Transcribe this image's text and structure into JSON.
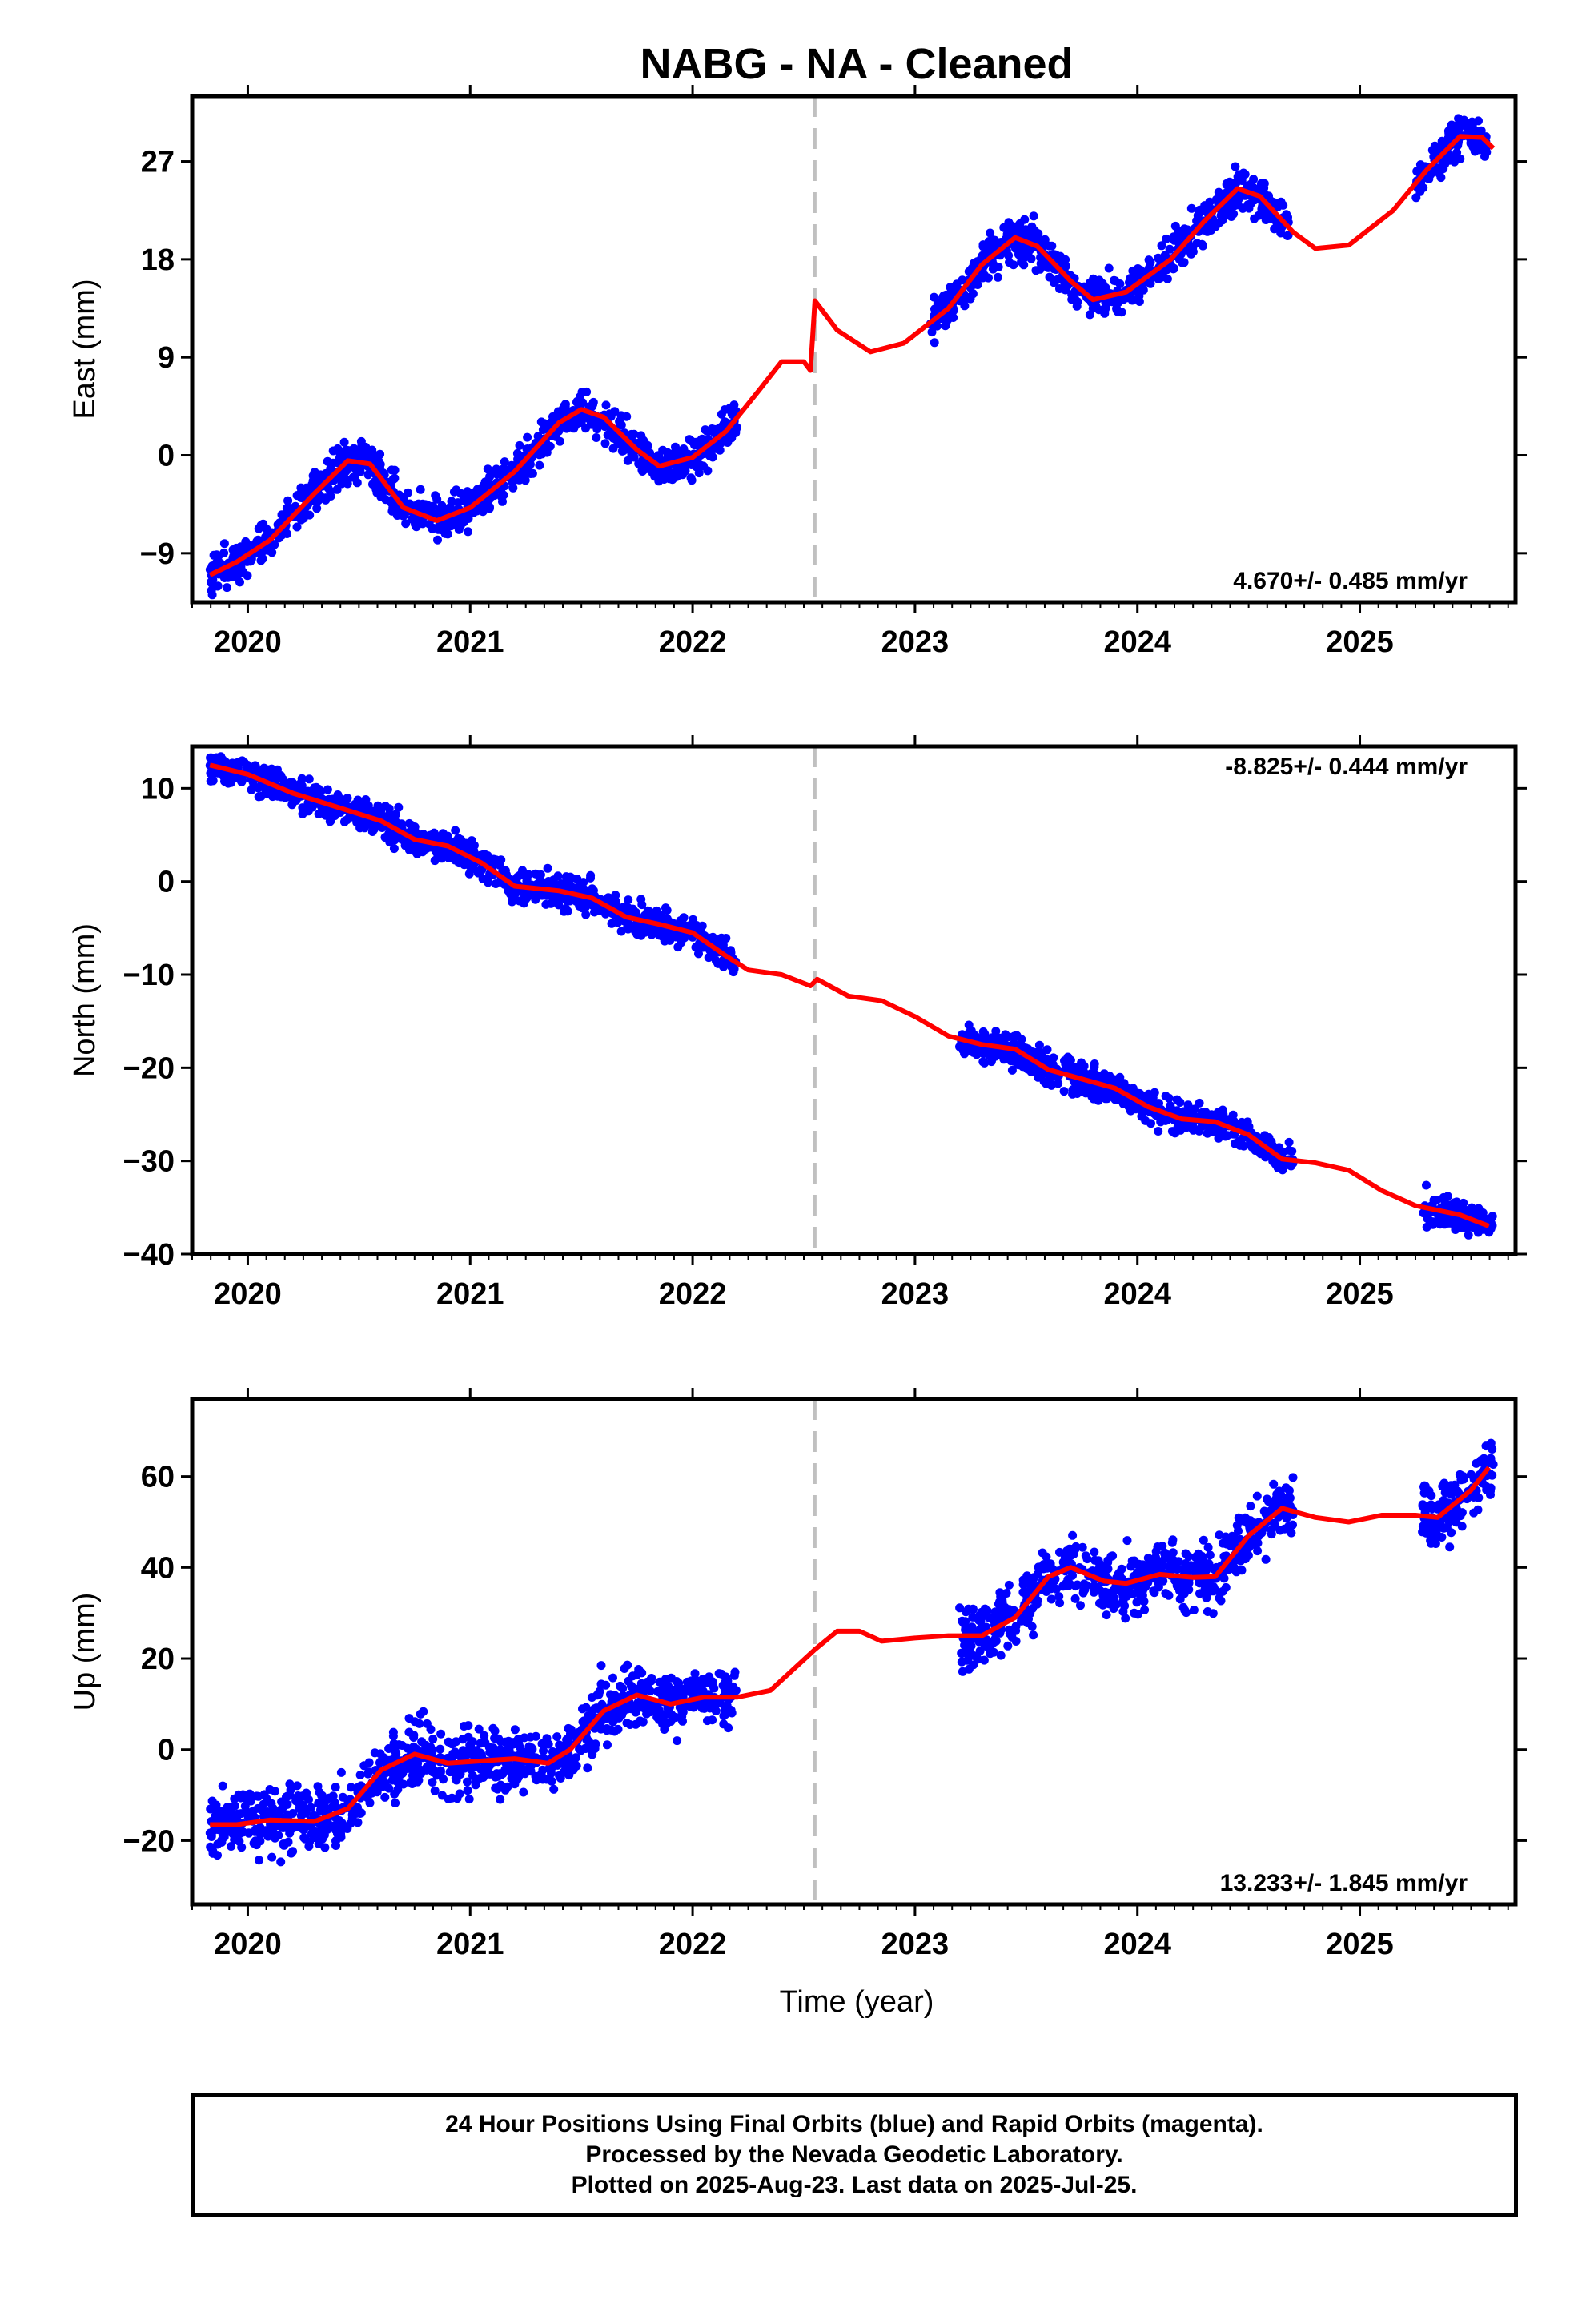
{
  "title": "NABG  - NA - Cleaned",
  "xlabel": "Time (year)",
  "footer": {
    "line1": "24 Hour Positions Using Final Orbits (blue) and Rapid Orbits (magenta).",
    "line2": "Processed by the Nevada Geodetic Laboratory.",
    "line3": "Plotted on 2025-Aug-23. Last data on 2025-Jul-25."
  },
  "colors": {
    "data": "#0000ff",
    "model": "#ff0000",
    "marker": "#c0c0c0",
    "frame": "#000000"
  },
  "chart_data": [
    {
      "type": "scatter",
      "ylabel": "East (mm)",
      "rate": "4.670+/- 0.485 mm/yr",
      "xlim": [
        2019.75,
        2025.7
      ],
      "ylim": [
        -13.5,
        33
      ],
      "yticks": [
        -9,
        0,
        9,
        18,
        27
      ],
      "xticks": [
        2020,
        2021,
        2022,
        2023,
        2024,
        2025
      ],
      "equipment_change": 2022.55,
      "data_segments": [
        [
          2019.83,
          2022.2
        ],
        [
          2023.07,
          2024.68
        ],
        [
          2025.25,
          2025.57
        ]
      ],
      "noise": 1.3,
      "model": [
        [
          2019.83,
          -11
        ],
        [
          2019.95,
          -9.8
        ],
        [
          2020.1,
          -7.8
        ],
        [
          2020.3,
          -3.5
        ],
        [
          2020.45,
          -0.5
        ],
        [
          2020.55,
          -0.8
        ],
        [
          2020.7,
          -4.8
        ],
        [
          2020.85,
          -6
        ],
        [
          2021.0,
          -4.8
        ],
        [
          2021.2,
          -1.5
        ],
        [
          2021.4,
          3
        ],
        [
          2021.5,
          4.2
        ],
        [
          2021.6,
          3.5
        ],
        [
          2021.75,
          0.5
        ],
        [
          2021.85,
          -1
        ],
        [
          2022.0,
          -0.2
        ],
        [
          2022.15,
          2.2
        ],
        [
          2022.3,
          6
        ],
        [
          2022.4,
          8.6
        ],
        [
          2022.5,
          8.6
        ],
        [
          2022.53,
          7.8
        ],
        [
          2022.55,
          14.2
        ],
        [
          2022.65,
          11.5
        ],
        [
          2022.8,
          9.5
        ],
        [
          2022.95,
          10.3
        ],
        [
          2023.15,
          13.5
        ],
        [
          2023.3,
          17.5
        ],
        [
          2023.45,
          20
        ],
        [
          2023.55,
          19.2
        ],
        [
          2023.7,
          16
        ],
        [
          2023.8,
          14.3
        ],
        [
          2023.95,
          15
        ],
        [
          2024.15,
          18
        ],
        [
          2024.3,
          21.5
        ],
        [
          2024.45,
          24.5
        ],
        [
          2024.55,
          23.8
        ],
        [
          2024.7,
          20.5
        ],
        [
          2024.8,
          19
        ],
        [
          2024.95,
          19.3
        ],
        [
          2025.15,
          22.5
        ],
        [
          2025.3,
          26.2
        ],
        [
          2025.45,
          29.3
        ],
        [
          2025.55,
          29.2
        ],
        [
          2025.6,
          28.2
        ]
      ]
    },
    {
      "type": "scatter",
      "ylabel": "North (mm)",
      "rate": "-8.825+/- 0.444 mm/yr",
      "xlim": [
        2019.75,
        2025.7
      ],
      "ylim": [
        -40,
        14.5
      ],
      "yticks": [
        -40,
        -30,
        -20,
        -10,
        0,
        10
      ],
      "xticks": [
        2020,
        2021,
        2022,
        2023,
        2024,
        2025
      ],
      "equipment_change": 2022.55,
      "data_segments": [
        [
          2019.83,
          2022.2
        ],
        [
          2023.2,
          2024.7
        ],
        [
          2025.28,
          2025.6
        ]
      ],
      "noise": 1.2,
      "model": [
        [
          2019.83,
          12.5
        ],
        [
          2020.0,
          11.5
        ],
        [
          2020.2,
          9.5
        ],
        [
          2020.4,
          8
        ],
        [
          2020.6,
          6.5
        ],
        [
          2020.75,
          4.5
        ],
        [
          2020.9,
          3.8
        ],
        [
          2021.05,
          2
        ],
        [
          2021.2,
          -0.5
        ],
        [
          2021.4,
          -1
        ],
        [
          2021.55,
          -1.8
        ],
        [
          2021.7,
          -3.8
        ],
        [
          2021.85,
          -4.6
        ],
        [
          2022.0,
          -5.5
        ],
        [
          2022.15,
          -8
        ],
        [
          2022.25,
          -9.5
        ],
        [
          2022.4,
          -10
        ],
        [
          2022.53,
          -11.2
        ],
        [
          2022.56,
          -10.5
        ],
        [
          2022.7,
          -12.3
        ],
        [
          2022.85,
          -12.8
        ],
        [
          2023.0,
          -14.5
        ],
        [
          2023.15,
          -16.6
        ],
        [
          2023.3,
          -17.5
        ],
        [
          2023.45,
          -18
        ],
        [
          2023.6,
          -20.2
        ],
        [
          2023.75,
          -21.2
        ],
        [
          2023.9,
          -22.2
        ],
        [
          2024.05,
          -24.2
        ],
        [
          2024.2,
          -25.5
        ],
        [
          2024.35,
          -25.8
        ],
        [
          2024.5,
          -27.2
        ],
        [
          2024.65,
          -29.8
        ],
        [
          2024.8,
          -30.2
        ],
        [
          2024.95,
          -31
        ],
        [
          2025.1,
          -33.2
        ],
        [
          2025.25,
          -34.8
        ],
        [
          2025.45,
          -35.8
        ],
        [
          2025.58,
          -37
        ]
      ]
    },
    {
      "type": "scatter",
      "ylabel": "Up (mm)",
      "rate": "13.233+/- 1.845 mm/yr",
      "xlim": [
        2019.75,
        2025.7
      ],
      "ylim": [
        -34,
        77
      ],
      "yticks": [
        -20,
        0,
        20,
        40,
        60
      ],
      "xticks": [
        2020,
        2021,
        2022,
        2023,
        2024,
        2025
      ],
      "equipment_change": 2022.55,
      "data_segments": [
        [
          2019.83,
          2022.2
        ],
        [
          2023.2,
          2024.7
        ],
        [
          2025.28,
          2025.6
        ]
      ],
      "noise": 5,
      "model": [
        [
          2019.83,
          -16.5
        ],
        [
          2019.95,
          -16.5
        ],
        [
          2020.1,
          -15.5
        ],
        [
          2020.3,
          -15.8
        ],
        [
          2020.45,
          -13
        ],
        [
          2020.6,
          -4.5
        ],
        [
          2020.75,
          -1
        ],
        [
          2020.9,
          -3
        ],
        [
          2021.05,
          -2.5
        ],
        [
          2021.2,
          -2
        ],
        [
          2021.35,
          -3
        ],
        [
          2021.45,
          0
        ],
        [
          2021.6,
          8.5
        ],
        [
          2021.75,
          12
        ],
        [
          2021.9,
          10
        ],
        [
          2022.05,
          11.5
        ],
        [
          2022.2,
          11.5
        ],
        [
          2022.35,
          13
        ],
        [
          2022.55,
          22
        ],
        [
          2022.65,
          26
        ],
        [
          2022.75,
          26
        ],
        [
          2022.85,
          23.8
        ],
        [
          2023.0,
          24.5
        ],
        [
          2023.15,
          25
        ],
        [
          2023.3,
          25
        ],
        [
          2023.45,
          29
        ],
        [
          2023.6,
          38
        ],
        [
          2023.7,
          40
        ],
        [
          2023.85,
          37
        ],
        [
          2023.95,
          36.5
        ],
        [
          2024.1,
          38.5
        ],
        [
          2024.25,
          37.8
        ],
        [
          2024.35,
          38
        ],
        [
          2024.5,
          47
        ],
        [
          2024.65,
          53
        ],
        [
          2024.8,
          51
        ],
        [
          2024.95,
          50
        ],
        [
          2025.1,
          51.5
        ],
        [
          2025.25,
          51.5
        ],
        [
          2025.35,
          51
        ],
        [
          2025.5,
          57
        ],
        [
          2025.58,
          62
        ]
      ]
    }
  ]
}
